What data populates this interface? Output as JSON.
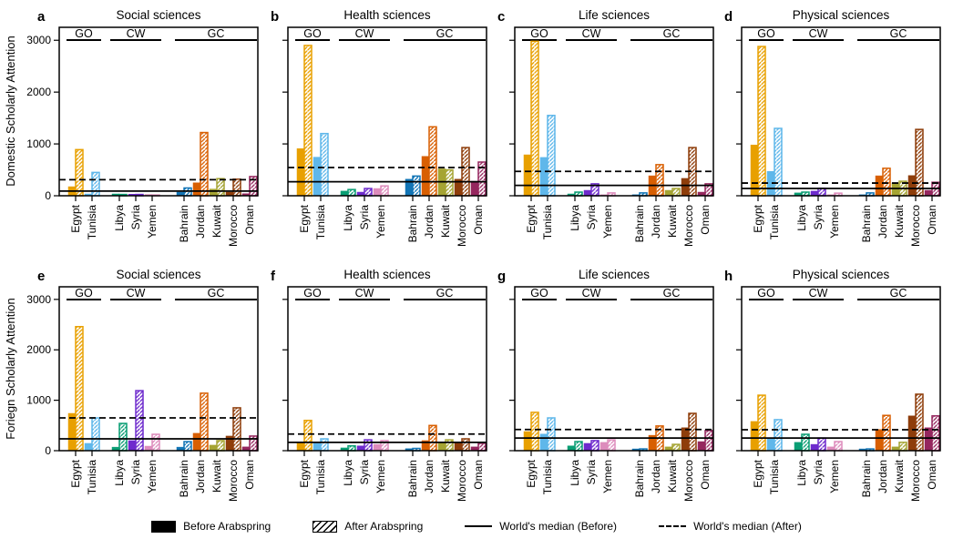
{
  "figure": {
    "row_labels": [
      "Domestic Scholarly Attention",
      "Foriegn Scholarly Attention"
    ],
    "categories": [
      "Egypt",
      "Tunisia",
      "Libya",
      "Syria",
      "Yemen",
      "Bahrain",
      "Jordan",
      "Kuwait",
      "Morocco",
      "Oman"
    ],
    "groups": [
      {
        "label": "GO",
        "countries": [
          "Egypt",
          "Tunisia"
        ]
      },
      {
        "label": "CW",
        "countries": [
          "Libya",
          "Syria",
          "Yemen"
        ]
      },
      {
        "label": "GC",
        "countries": [
          "Bahrain",
          "Jordan",
          "Kuwait",
          "Morocco",
          "Oman"
        ]
      }
    ],
    "country_colors": {
      "Egypt": "#E8A000",
      "Tunisia": "#5FB7EA",
      "Libya": "#0A9E74",
      "Syria": "#6E2BCD",
      "Yemen": "#DD8CBC",
      "Bahrain": "#1174B5",
      "Jordan": "#D85F02",
      "Kuwait": "#A5A433",
      "Morocco": "#8E3D0A",
      "Oman": "#95265E"
    },
    "yticks": [
      0,
      1000,
      2000,
      3000
    ],
    "ylim": [
      0,
      3250
    ]
  },
  "legend": {
    "items": [
      {
        "label": "Before Arabspring",
        "swatch": "solid-patch"
      },
      {
        "label": "After Arabspring",
        "swatch": "hatched-patch"
      },
      {
        "label": "World's median (Before)",
        "swatch": "solid-line"
      },
      {
        "label": "World's median (After)",
        "swatch": "dashed-line"
      }
    ]
  },
  "chart_data": [
    {
      "type": "bar",
      "panel": "a",
      "title": "Social sciences",
      "ylabel": "Domestic Scholarly Attention",
      "categories": [
        "Egypt",
        "Tunisia",
        "Libya",
        "Syria",
        "Yemen",
        "Bahrain",
        "Jordan",
        "Kuwait",
        "Morocco",
        "Oman"
      ],
      "series": [
        {
          "name": "Before Arabspring",
          "values": [
            175,
            35,
            35,
            30,
            25,
            70,
            250,
            130,
            70,
            40
          ]
        },
        {
          "name": "After Arabspring",
          "values": [
            890,
            450,
            25,
            25,
            15,
            150,
            1220,
            330,
            320,
            370
          ]
        }
      ],
      "world_median_before": 90,
      "world_median_after": 310,
      "ylim": [
        0,
        3250
      ],
      "yticks": [
        0,
        1000,
        2000,
        3000
      ]
    },
    {
      "type": "bar",
      "panel": "b",
      "title": "Health sciences",
      "ylabel": "Domestic Scholarly Attention",
      "categories": [
        "Egypt",
        "Tunisia",
        "Libya",
        "Syria",
        "Yemen",
        "Bahrain",
        "Jordan",
        "Kuwait",
        "Morocco",
        "Oman"
      ],
      "series": [
        {
          "name": "Before Arabspring",
          "values": [
            910,
            745,
            90,
            70,
            140,
            320,
            760,
            520,
            320,
            280
          ]
        },
        {
          "name": "After Arabspring",
          "values": [
            2900,
            1200,
            120,
            140,
            190,
            380,
            1330,
            500,
            930,
            650
          ]
        }
      ],
      "world_median_before": 270,
      "world_median_after": 545,
      "ylim": [
        0,
        3250
      ],
      "yticks": [
        0,
        1000,
        2000,
        3000
      ]
    },
    {
      "type": "bar",
      "panel": "c",
      "title": "Life sciences",
      "ylabel": "Domestic Scholarly Attention",
      "categories": [
        "Egypt",
        "Tunisia",
        "Libya",
        "Syria",
        "Yemen",
        "Bahrain",
        "Jordan",
        "Kuwait",
        "Morocco",
        "Oman"
      ],
      "series": [
        {
          "name": "Before Arabspring",
          "values": [
            790,
            740,
            35,
            105,
            20,
            20,
            385,
            105,
            335,
            70
          ]
        },
        {
          "name": "After Arabspring",
          "values": [
            2980,
            1550,
            70,
            230,
            55,
            55,
            600,
            140,
            930,
            230
          ]
        }
      ],
      "world_median_before": 200,
      "world_median_after": 470,
      "ylim": [
        0,
        3250
      ],
      "yticks": [
        0,
        1000,
        2000,
        3000
      ]
    },
    {
      "type": "bar",
      "panel": "d",
      "title": "Physical sciences",
      "ylabel": "Domestic Scholarly Attention",
      "categories": [
        "Egypt",
        "Tunisia",
        "Libya",
        "Syria",
        "Yemen",
        "Bahrain",
        "Jordan",
        "Kuwait",
        "Morocco",
        "Oman"
      ],
      "series": [
        {
          "name": "Before Arabspring",
          "values": [
            980,
            470,
            55,
            90,
            20,
            20,
            385,
            245,
            390,
            105
          ]
        },
        {
          "name": "After Arabspring",
          "values": [
            2880,
            1300,
            70,
            145,
            50,
            55,
            530,
            280,
            1280,
            260
          ]
        }
      ],
      "world_median_before": 140,
      "world_median_after": 245,
      "ylim": [
        0,
        3250
      ],
      "yticks": [
        0,
        1000,
        2000,
        3000
      ]
    },
    {
      "type": "bar",
      "panel": "e",
      "title": "Social sciences",
      "ylabel": "Foriegn Scholarly Attention",
      "categories": [
        "Egypt",
        "Tunisia",
        "Libya",
        "Syria",
        "Yemen",
        "Bahrain",
        "Jordan",
        "Kuwait",
        "Morocco",
        "Oman"
      ],
      "series": [
        {
          "name": "Before Arabspring",
          "values": [
            740,
            145,
            70,
            200,
            90,
            70,
            345,
            110,
            290,
            75
          ]
        },
        {
          "name": "After Arabspring",
          "values": [
            2460,
            650,
            540,
            1190,
            325,
            180,
            1140,
            200,
            850,
            290
          ]
        }
      ],
      "world_median_before": 235,
      "world_median_after": 650,
      "ylim": [
        0,
        3250
      ],
      "yticks": [
        0,
        1000,
        2000,
        3000
      ]
    },
    {
      "type": "bar",
      "panel": "f",
      "title": "Health sciences",
      "ylabel": "Foriegn Scholarly Attention",
      "categories": [
        "Egypt",
        "Tunisia",
        "Libya",
        "Syria",
        "Yemen",
        "Bahrain",
        "Jordan",
        "Kuwait",
        "Morocco",
        "Oman"
      ],
      "series": [
        {
          "name": "Before Arabspring",
          "values": [
            165,
            145,
            55,
            95,
            125,
            40,
            200,
            165,
            165,
            75
          ]
        },
        {
          "name": "After Arabspring",
          "values": [
            600,
            235,
            95,
            215,
            200,
            45,
            500,
            215,
            235,
            145
          ]
        }
      ],
      "world_median_before": 165,
      "world_median_after": 330,
      "ylim": [
        0,
        3250
      ],
      "yticks": [
        0,
        1000,
        2000,
        3000
      ]
    },
    {
      "type": "bar",
      "panel": "g",
      "title": "Life sciences",
      "ylabel": "Foriegn Scholarly Attention",
      "categories": [
        "Egypt",
        "Tunisia",
        "Libya",
        "Syria",
        "Yemen",
        "Bahrain",
        "Jordan",
        "Kuwait",
        "Morocco",
        "Oman"
      ],
      "series": [
        {
          "name": "Before Arabspring",
          "values": [
            380,
            330,
            95,
            145,
            165,
            35,
            305,
            75,
            455,
            180
          ]
        },
        {
          "name": "After Arabspring",
          "values": [
            760,
            650,
            180,
            200,
            215,
            35,
            490,
            125,
            740,
            400
          ]
        }
      ],
      "world_median_before": 250,
      "world_median_after": 420,
      "ylim": [
        0,
        3250
      ],
      "yticks": [
        0,
        1000,
        2000,
        3000
      ]
    },
    {
      "type": "bar",
      "panel": "h",
      "title": "Physical sciences",
      "ylabel": "Foriegn Scholarly Attention",
      "categories": [
        "Egypt",
        "Tunisia",
        "Libya",
        "Syria",
        "Yemen",
        "Bahrain",
        "Jordan",
        "Kuwait",
        "Morocco",
        "Oman"
      ],
      "series": [
        {
          "name": "Before Arabspring",
          "values": [
            580,
            250,
            165,
            125,
            75,
            35,
            420,
            75,
            690,
            455
          ]
        },
        {
          "name": "After Arabspring",
          "values": [
            1100,
            615,
            325,
            250,
            180,
            35,
            700,
            165,
            1120,
            690
          ]
        }
      ],
      "world_median_before": 250,
      "world_median_after": 415,
      "ylim": [
        0,
        3250
      ],
      "yticks": [
        0,
        1000,
        2000,
        3000
      ]
    }
  ]
}
